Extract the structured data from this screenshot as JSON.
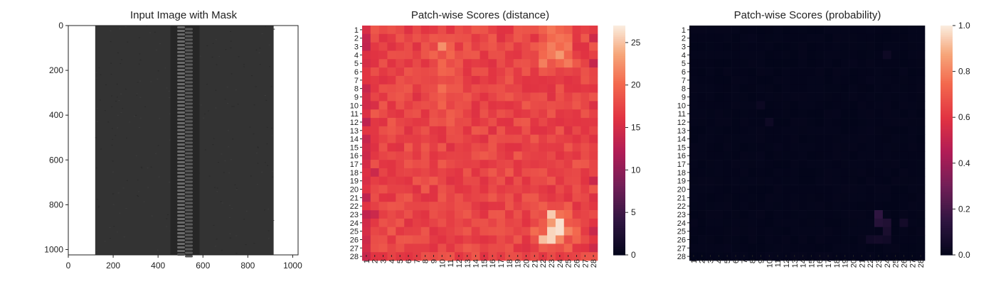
{
  "chart_data": [
    {
      "type": "image",
      "title": "Input Image with Mask",
      "xlim": [
        0,
        1024
      ],
      "ylim": [
        1024,
        0
      ],
      "xticks": [
        0,
        200,
        400,
        600,
        800,
        1000
      ],
      "yticks": [
        0,
        200,
        400,
        600,
        800,
        1000
      ],
      "image_content": {
        "background": "#ffffff",
        "fabric_extent_x": [
          120,
          915
        ],
        "fabric_color": "#333333",
        "zipper_extent_x": [
          455,
          585
        ],
        "zipper_color": "#6a6a6a"
      }
    },
    {
      "type": "heatmap",
      "title": "Patch-wise Scores (distance)",
      "x_categories": [
        "1",
        "2",
        "3",
        "4",
        "5",
        "6",
        "7",
        "8",
        "9",
        "10",
        "11",
        "12",
        "13",
        "14",
        "15",
        "16",
        "17",
        "18",
        "19",
        "20",
        "21",
        "22",
        "23",
        "24",
        "25",
        "26",
        "27",
        "28"
      ],
      "y_categories": [
        "1",
        "2",
        "3",
        "4",
        "5",
        "6",
        "7",
        "8",
        "9",
        "10",
        "11",
        "12",
        "13",
        "14",
        "15",
        "16",
        "17",
        "18",
        "19",
        "20",
        "21",
        "22",
        "23",
        "24",
        "25",
        "26",
        "27",
        "28"
      ],
      "colorbar": {
        "range": [
          0,
          27
        ],
        "ticks": [
          0,
          5,
          10,
          15,
          20,
          25
        ],
        "colormap": "rocket"
      },
      "values_summary": "most patches 17-20; hot region rows 23-27 x cols 22-25 up to ~26; lower values ~14 along left edge and some right-edge cells",
      "hotspots": [
        {
          "row": 23,
          "col": 23,
          "value": 25.5
        },
        {
          "row": 24,
          "col": 24,
          "value": 26.5
        },
        {
          "row": 25,
          "col": 23,
          "value": 26
        },
        {
          "row": 25,
          "col": 24,
          "value": 26.5
        },
        {
          "row": 26,
          "col": 23,
          "value": 26
        },
        {
          "row": 26,
          "col": 22,
          "value": 25
        },
        {
          "row": 4,
          "col": 24,
          "value": 23
        },
        {
          "row": 3,
          "col": 10,
          "value": 22.5
        }
      ]
    },
    {
      "type": "heatmap",
      "title": "Patch-wise Scores (probability)",
      "x_categories": [
        "1",
        "2",
        "3",
        "4",
        "5",
        "6",
        "7",
        "8",
        "9",
        "10",
        "11",
        "12",
        "13",
        "14",
        "15",
        "16",
        "17",
        "18",
        "19",
        "20",
        "21",
        "22",
        "23",
        "24",
        "25",
        "26",
        "27",
        "28"
      ],
      "y_categories": [
        "1",
        "2",
        "3",
        "4",
        "5",
        "6",
        "7",
        "8",
        "9",
        "10",
        "11",
        "12",
        "13",
        "14",
        "15",
        "16",
        "17",
        "18",
        "19",
        "20",
        "21",
        "22",
        "23",
        "24",
        "25",
        "26",
        "27",
        "28"
      ],
      "colorbar": {
        "range": [
          0,
          1.0
        ],
        "ticks": [
          "0.0",
          "0.2",
          "0.4",
          "0.6",
          "0.8",
          "1.0"
        ],
        "colormap": "rocket"
      },
      "values_summary": "nearly all patches ~0.0; faint values up to ~0.15 in rows 23-27 x cols 22-26",
      "hotspots": [
        {
          "row": 23,
          "col": 23,
          "value": 0.15
        },
        {
          "row": 24,
          "col": 23,
          "value": 0.12
        },
        {
          "row": 24,
          "col": 24,
          "value": 0.1
        },
        {
          "row": 24,
          "col": 26,
          "value": 0.06
        },
        {
          "row": 25,
          "col": 24,
          "value": 0.08
        },
        {
          "row": 26,
          "col": 22,
          "value": 0.05
        },
        {
          "row": 26,
          "col": 23,
          "value": 0.06
        },
        {
          "row": 26,
          "col": 24,
          "value": 0.05
        },
        {
          "row": 4,
          "col": 24,
          "value": 0.04
        },
        {
          "row": 12,
          "col": 10,
          "value": 0.04
        },
        {
          "row": 10,
          "col": 9,
          "value": 0.03
        }
      ]
    }
  ]
}
